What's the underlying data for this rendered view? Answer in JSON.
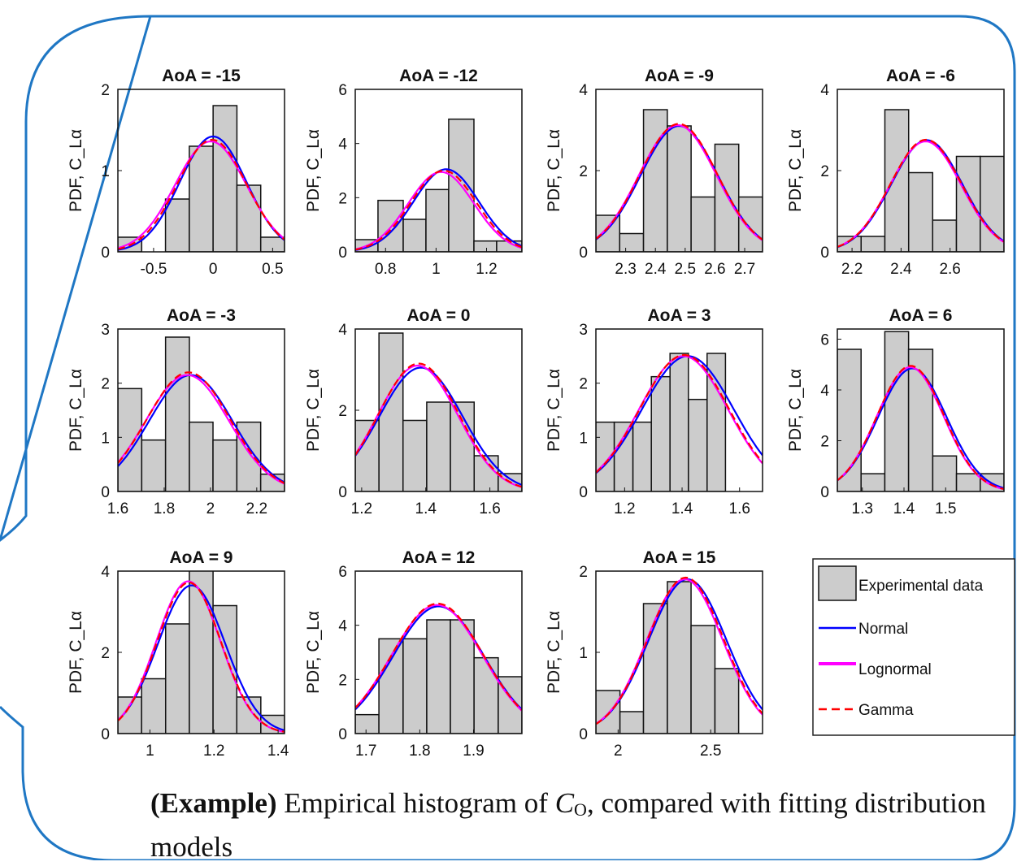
{
  "ylabels": {
    "row1": "PDF, C_Lα",
    "row2": "PDF, C_Lα",
    "row3": "PDF, C_Lα"
  },
  "legend": {
    "experimental": "Experimental data",
    "normal": "Normal",
    "lognormal": "Lognormal",
    "gamma": "Gamma"
  },
  "colors": {
    "frame": "#1f77c4",
    "bar": "#cccccc",
    "normal": "#0000ff",
    "lognormal": "#ff00ff",
    "gamma": "#ff0000"
  },
  "caption": {
    "bold": "(Example)",
    "text1": " Empirical histogram of ",
    "math_var": "C",
    "math_sub": "O",
    "text2": ", compared with fitting distribution models"
  },
  "chart_data": [
    {
      "type": "bar",
      "title": "AoA = -15",
      "xlim": [
        -0.8,
        0.6
      ],
      "ylim": [
        0,
        2
      ],
      "xticks": [
        -0.5,
        0,
        0.5
      ],
      "xtick_labels": [
        "-0.5",
        "0",
        "0.5"
      ],
      "yticks": [
        0,
        1,
        2
      ],
      "ytick_labels": [
        "0",
        "1",
        "2"
      ],
      "bin_edges": [
        -0.8,
        -0.6,
        -0.4,
        -0.2,
        0.0,
        0.2,
        0.4,
        0.6
      ],
      "values": [
        0.18,
        0.0,
        0.65,
        1.3,
        1.8,
        0.82,
        0.18
      ],
      "series": [
        {
          "name": "Normal",
          "mean": 0.0,
          "sd": 0.28,
          "peak": 1.42
        },
        {
          "name": "Lognormal",
          "mean": -0.02,
          "sd": 0.3,
          "peak": 1.36
        },
        {
          "name": "Gamma",
          "mean": -0.01,
          "sd": 0.29,
          "peak": 1.38
        }
      ]
    },
    {
      "type": "bar",
      "title": "AoA = -12",
      "xlim": [
        0.68,
        1.34
      ],
      "ylim": [
        0,
        6
      ],
      "xticks": [
        0.8,
        1,
        1.2
      ],
      "xtick_labels": [
        "0.8",
        "1",
        "1.2"
      ],
      "yticks": [
        0,
        2,
        4,
        6
      ],
      "ytick_labels": [
        "0",
        "2",
        "4",
        "6"
      ],
      "bin_edges": [
        0.68,
        0.77,
        0.87,
        0.96,
        1.05,
        1.15,
        1.24,
        1.34
      ],
      "values": [
        0.45,
        1.9,
        1.2,
        2.3,
        4.9,
        0.4,
        0.4
      ],
      "series": [
        {
          "name": "Normal",
          "mean": 1.04,
          "sd": 0.13,
          "peak": 3.05
        },
        {
          "name": "Lognormal",
          "mean": 1.02,
          "sd": 0.13,
          "peak": 2.95
        },
        {
          "name": "Gamma",
          "mean": 1.03,
          "sd": 0.13,
          "peak": 3.0
        }
      ]
    },
    {
      "type": "bar",
      "title": "AoA = -9",
      "xlim": [
        2.2,
        2.76
      ],
      "ylim": [
        0,
        4
      ],
      "xticks": [
        2.3,
        2.4,
        2.5,
        2.6,
        2.7
      ],
      "xtick_labels": [
        "2.3",
        "2.4",
        "2.5",
        "2.6",
        "2.7"
      ],
      "yticks": [
        0,
        2,
        4
      ],
      "ytick_labels": [
        "0",
        "2",
        "4"
      ],
      "bin_edges": [
        2.2,
        2.28,
        2.36,
        2.44,
        2.52,
        2.6,
        2.68,
        2.76
      ],
      "values": [
        0.9,
        0.45,
        3.5,
        3.1,
        1.35,
        2.65,
        1.35
      ],
      "series": [
        {
          "name": "Normal",
          "mean": 2.48,
          "sd": 0.13,
          "peak": 3.1
        },
        {
          "name": "Lognormal",
          "mean": 2.475,
          "sd": 0.13,
          "peak": 3.12
        },
        {
          "name": "Gamma",
          "mean": 2.478,
          "sd": 0.13,
          "peak": 3.15
        }
      ]
    },
    {
      "type": "bar",
      "title": "AoA = -6",
      "xlim": [
        2.14,
        2.82
      ],
      "ylim": [
        0,
        4
      ],
      "xticks": [
        2.2,
        2.4,
        2.6
      ],
      "xtick_labels": [
        "2.2",
        "2.4",
        "2.6"
      ],
      "yticks": [
        0,
        2,
        4
      ],
      "ytick_labels": [
        "0",
        "2",
        "4"
      ],
      "bin_edges": [
        2.14,
        2.237,
        2.334,
        2.431,
        2.529,
        2.626,
        2.723,
        2.82
      ],
      "values": [
        0.38,
        0.38,
        3.5,
        1.95,
        0.78,
        2.35,
        2.35
      ],
      "series": [
        {
          "name": "Normal",
          "mean": 2.505,
          "sd": 0.145,
          "peak": 2.75
        },
        {
          "name": "Lognormal",
          "mean": 2.5,
          "sd": 0.145,
          "peak": 2.72
        },
        {
          "name": "Gamma",
          "mean": 2.502,
          "sd": 0.145,
          "peak": 2.76
        }
      ]
    },
    {
      "type": "bar",
      "title": "AoA = -3",
      "xlim": [
        1.6,
        2.32
      ],
      "ylim": [
        0,
        3
      ],
      "xticks": [
        1.6,
        1.8,
        2.0,
        2.2
      ],
      "xtick_labels": [
        "1.6",
        "1.8",
        "2",
        "2.2"
      ],
      "yticks": [
        0,
        1,
        2,
        3
      ],
      "ytick_labels": [
        "0",
        "1",
        "2",
        "3"
      ],
      "bin_edges": [
        1.6,
        1.703,
        1.806,
        1.909,
        2.011,
        2.114,
        2.217,
        2.32
      ],
      "values": [
        1.9,
        0.95,
        2.85,
        1.28,
        0.95,
        1.28,
        0.32
      ],
      "series": [
        {
          "name": "Normal",
          "mean": 1.915,
          "sd": 0.18,
          "peak": 2.15
        },
        {
          "name": "Lognormal",
          "mean": 1.9,
          "sd": 0.18,
          "peak": 2.15
        },
        {
          "name": "Gamma",
          "mean": 1.905,
          "sd": 0.18,
          "peak": 2.2
        }
      ]
    },
    {
      "type": "bar",
      "title": "AoA = 0",
      "xlim": [
        1.18,
        1.7
      ],
      "ylim": [
        0,
        4
      ],
      "xticks": [
        1.2,
        1.4,
        1.6
      ],
      "xtick_labels": [
        "1.2",
        "1.4",
        "1.6"
      ],
      "yticks": [
        0,
        2,
        4
      ],
      "ytick_labels": [
        "0",
        "2",
        "4"
      ],
      "bin_edges": [
        1.18,
        1.254,
        1.329,
        1.403,
        1.477,
        1.551,
        1.626,
        1.7
      ],
      "values": [
        1.75,
        3.9,
        1.75,
        2.2,
        2.2,
        0.88,
        0.44
      ],
      "series": [
        {
          "name": "Normal",
          "mean": 1.385,
          "sd": 0.13,
          "peak": 3.05
        },
        {
          "name": "Lognormal",
          "mean": 1.375,
          "sd": 0.125,
          "peak": 3.1
        },
        {
          "name": "Gamma",
          "mean": 1.378,
          "sd": 0.125,
          "peak": 3.15
        }
      ]
    },
    {
      "type": "bar",
      "title": "AoA = 3",
      "xlim": [
        1.1,
        1.68
      ],
      "ylim": [
        0,
        3
      ],
      "xticks": [
        1.2,
        1.4,
        1.6
      ],
      "xtick_labels": [
        "1.2",
        "1.4",
        "1.6"
      ],
      "yticks": [
        0,
        1,
        2,
        3
      ],
      "ytick_labels": [
        "0",
        "1",
        "2",
        "3"
      ],
      "bin_edges": [
        1.1,
        1.164,
        1.229,
        1.293,
        1.358,
        1.422,
        1.487,
        1.551,
        1.616,
        1.68
      ],
      "values": [
        1.28,
        1.28,
        1.28,
        2.12,
        2.55,
        1.7,
        2.55,
        0,
        0
      ],
      "series": [
        {
          "name": "Normal",
          "mean": 1.42,
          "sd": 0.16,
          "peak": 2.5
        },
        {
          "name": "Lognormal",
          "mean": 1.405,
          "sd": 0.155,
          "peak": 2.5
        },
        {
          "name": "Gamma",
          "mean": 1.408,
          "sd": 0.155,
          "peak": 2.52
        }
      ]
    },
    {
      "type": "bar",
      "title": "AoA = 6",
      "xlim": [
        1.24,
        1.64
      ],
      "ylim": [
        0,
        6.4
      ],
      "xticks": [
        1.3,
        1.4,
        1.5
      ],
      "xtick_labels": [
        "1.3",
        "1.4",
        "1.5"
      ],
      "yticks": [
        0,
        2,
        4,
        6
      ],
      "ytick_labels": [
        "0",
        "2",
        "4",
        "6"
      ],
      "bin_edges": [
        1.24,
        1.297,
        1.354,
        1.411,
        1.469,
        1.526,
        1.583,
        1.64
      ],
      "values": [
        5.6,
        0.7,
        6.3,
        5.6,
        1.4,
        0.7,
        0.7
      ],
      "series": [
        {
          "name": "Normal",
          "mean": 1.42,
          "sd": 0.082,
          "peak": 4.85
        },
        {
          "name": "Lognormal",
          "mean": 1.415,
          "sd": 0.08,
          "peak": 4.9
        },
        {
          "name": "Gamma",
          "mean": 1.416,
          "sd": 0.08,
          "peak": 4.95
        }
      ]
    },
    {
      "type": "bar",
      "title": "AoA = 9",
      "xlim": [
        0.9,
        1.42
      ],
      "ylim": [
        0,
        4
      ],
      "xticks": [
        1.0,
        1.2,
        1.4
      ],
      "xtick_labels": [
        "1",
        "1.2",
        "1.4"
      ],
      "yticks": [
        0,
        2,
        4
      ],
      "ytick_labels": [
        "0",
        "2",
        "4"
      ],
      "bin_edges": [
        0.9,
        0.974,
        1.049,
        1.123,
        1.197,
        1.271,
        1.346,
        1.42
      ],
      "values": [
        0.9,
        1.35,
        2.7,
        4.05,
        3.15,
        0.9,
        0.45
      ],
      "series": [
        {
          "name": "Normal",
          "mean": 1.13,
          "sd": 0.105,
          "peak": 3.65
        },
        {
          "name": "Lognormal",
          "mean": 1.12,
          "sd": 0.1,
          "peak": 3.75
        },
        {
          "name": "Gamma",
          "mean": 1.122,
          "sd": 0.1,
          "peak": 3.72
        }
      ]
    },
    {
      "type": "bar",
      "title": "AoA = 12",
      "xlim": [
        1.68,
        1.99
      ],
      "ylim": [
        0,
        6
      ],
      "xticks": [
        1.7,
        1.8,
        1.9
      ],
      "xtick_labels": [
        "1.7",
        "1.8",
        "1.9"
      ],
      "yticks": [
        0,
        2,
        4,
        6
      ],
      "ytick_labels": [
        "0",
        "2",
        "4",
        "6"
      ],
      "bin_edges": [
        1.68,
        1.724,
        1.769,
        1.813,
        1.857,
        1.901,
        1.946,
        1.99
      ],
      "values": [
        0.7,
        3.5,
        3.5,
        4.2,
        4.2,
        2.8,
        2.1
      ],
      "series": [
        {
          "name": "Normal",
          "mean": 1.835,
          "sd": 0.085,
          "peak": 4.7
        },
        {
          "name": "Lognormal",
          "mean": 1.832,
          "sd": 0.085,
          "peak": 4.75
        },
        {
          "name": "Gamma",
          "mean": 1.833,
          "sd": 0.085,
          "peak": 4.8
        }
      ]
    },
    {
      "type": "bar",
      "title": "AoA = 15",
      "xlim": [
        1.88,
        2.78
      ],
      "ylim": [
        0,
        2
      ],
      "xticks": [
        2.0,
        2.5
      ],
      "xtick_labels": [
        "2",
        "2.5"
      ],
      "yticks": [
        0,
        1,
        2
      ],
      "ytick_labels": [
        "0",
        "1",
        "2"
      ],
      "bin_edges": [
        1.88,
        2.01,
        2.137,
        2.266,
        2.394,
        2.523,
        2.651,
        2.78
      ],
      "values": [
        0.53,
        0.27,
        1.6,
        1.87,
        1.33,
        0.8,
        0
      ],
      "series": [
        {
          "name": "Normal",
          "mean": 2.375,
          "sd": 0.21,
          "peak": 1.9
        },
        {
          "name": "Lognormal",
          "mean": 2.36,
          "sd": 0.205,
          "peak": 1.9
        },
        {
          "name": "Gamma",
          "mean": 2.365,
          "sd": 0.205,
          "peak": 1.92
        }
      ]
    }
  ]
}
